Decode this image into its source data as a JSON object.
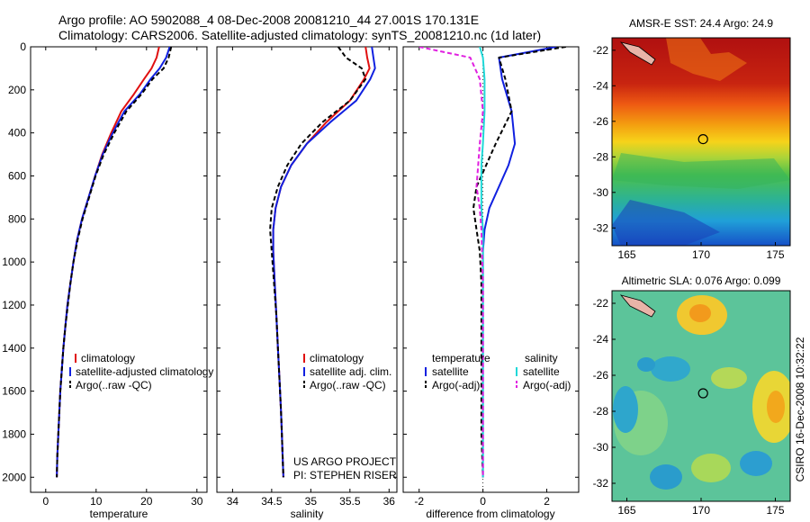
{
  "header": {
    "line1": "Argo profile: AO 5902088_4 08-Dec-2008 20081210_44 27.001S 170.131E",
    "line2": "Climatology: CARS2006. Satellite-adjusted climatology: synTS_20081210.nc (1d later)"
  },
  "side_stamp": "CSIRO 16-Dec-2008 10:32:22",
  "colors": {
    "climatology": "#e01010",
    "satellite": "#1020e0",
    "argo": "#000000",
    "salinity_sat": "#20d8d8",
    "salinity_argo": "#e020e0"
  },
  "chart_data": [
    {
      "id": "temperature",
      "type": "line",
      "xlabel": "temperature",
      "xlim": [
        -3,
        32
      ],
      "ylim": [
        0,
        2070
      ],
      "xticks": [
        "0",
        "10",
        "20",
        "30"
      ],
      "xtick_values": [
        0,
        10,
        20,
        30
      ],
      "yticks": [
        "0",
        "200",
        "400",
        "600",
        "800",
        "1000",
        "1200",
        "1400",
        "1600",
        "1800",
        "2000"
      ],
      "ytick_values": [
        0,
        200,
        400,
        600,
        800,
        1000,
        1200,
        1400,
        1600,
        1800,
        2000
      ],
      "legend": [
        "climatology",
        "satellite-adjusted climatology",
        "Argo(..raw -QC)"
      ],
      "series": [
        {
          "name": "climatology",
          "color_key": "climatology",
          "dash": "",
          "x": [
            22.5,
            22.0,
            21.0,
            19.5,
            17.5,
            15.0,
            13.0,
            11.2,
            9.8,
            8.5,
            7.2,
            6.2,
            5.5,
            4.9,
            4.3,
            3.9,
            3.5,
            3.2,
            2.9,
            2.7,
            2.5,
            2.3,
            2.2
          ],
          "y": [
            0,
            50,
            100,
            150,
            220,
            300,
            400,
            500,
            600,
            700,
            800,
            900,
            1000,
            1100,
            1200,
            1300,
            1400,
            1500,
            1600,
            1700,
            1800,
            1900,
            2000
          ]
        },
        {
          "name": "satellite",
          "color_key": "satellite",
          "dash": "",
          "x": [
            24.6,
            23.9,
            22.6,
            20.8,
            18.7,
            15.6,
            13.3,
            11.3,
            9.8,
            8.5,
            7.2,
            6.2,
            5.5,
            4.9,
            4.3,
            3.9,
            3.5,
            3.2,
            2.9,
            2.7,
            2.5,
            2.3,
            2.2
          ],
          "y": [
            0,
            50,
            100,
            150,
            220,
            300,
            400,
            500,
            600,
            700,
            800,
            900,
            1000,
            1100,
            1200,
            1300,
            1400,
            1500,
            1600,
            1700,
            1800,
            1900,
            2000
          ]
        },
        {
          "name": "argo",
          "color_key": "argo",
          "dash": "5,3",
          "x": [
            24.9,
            24.4,
            23.4,
            21.2,
            19.0,
            16.0,
            13.6,
            11.5,
            9.9,
            8.6,
            7.3,
            6.3,
            5.5,
            4.9,
            4.4,
            3.9,
            3.5,
            3.2,
            2.9,
            2.7,
            2.5,
            2.3,
            2.2
          ],
          "y": [
            0,
            50,
            100,
            150,
            220,
            300,
            400,
            500,
            600,
            700,
            800,
            900,
            1000,
            1100,
            1200,
            1300,
            1400,
            1500,
            1600,
            1700,
            1800,
            1900,
            2000
          ]
        }
      ]
    },
    {
      "id": "salinity",
      "type": "line",
      "xlabel": "salinity",
      "xlim": [
        33.8,
        36.1
      ],
      "ylim": [
        0,
        2070
      ],
      "xticks": [
        "34",
        "34.5",
        "35",
        "35.5",
        "36"
      ],
      "xtick_values": [
        34,
        34.5,
        35,
        35.5,
        36
      ],
      "legend": [
        "climatology",
        "satellite adj. clim.",
        "Argo(..raw -QC)"
      ],
      "credits": [
        "US ARGO PROJECT",
        "PI: STEPHEN RISER"
      ],
      "series": [
        {
          "name": "climatology",
          "color_key": "climatology",
          "dash": "",
          "x": [
            35.7,
            35.72,
            35.75,
            35.68,
            35.5,
            35.2,
            34.95,
            34.75,
            34.62,
            34.55,
            34.52,
            34.52,
            34.54,
            34.56,
            34.58,
            34.6,
            34.62,
            34.63,
            34.64,
            34.65
          ],
          "y": [
            0,
            50,
            100,
            150,
            250,
            350,
            450,
            550,
            650,
            750,
            850,
            950,
            1100,
            1250,
            1400,
            1550,
            1700,
            1800,
            1900,
            2000
          ]
        },
        {
          "name": "satellite",
          "color_key": "satellite",
          "dash": "",
          "x": [
            35.78,
            35.8,
            35.82,
            35.76,
            35.58,
            35.25,
            34.95,
            34.75,
            34.62,
            34.55,
            34.52,
            34.52,
            34.54,
            34.56,
            34.58,
            34.6,
            34.62,
            34.63,
            34.64,
            34.65
          ],
          "y": [
            0,
            50,
            100,
            150,
            250,
            350,
            450,
            550,
            650,
            750,
            850,
            950,
            1100,
            1250,
            1400,
            1550,
            1700,
            1800,
            1900,
            2000
          ]
        },
        {
          "name": "argo",
          "color_key": "argo",
          "dash": "5,3",
          "x": [
            35.35,
            35.45,
            35.65,
            35.7,
            35.5,
            35.15,
            34.88,
            34.7,
            34.58,
            34.5,
            34.48,
            34.5,
            34.53,
            34.56,
            34.58,
            34.6,
            34.62,
            34.63,
            34.64,
            34.65
          ],
          "y": [
            0,
            50,
            100,
            150,
            250,
            350,
            450,
            550,
            650,
            750,
            850,
            950,
            1100,
            1250,
            1400,
            1550,
            1700,
            1800,
            1900,
            2000
          ]
        }
      ]
    },
    {
      "id": "difference",
      "type": "line",
      "xlabel": "difference from climatology",
      "xlim": [
        -2.5,
        3.0
      ],
      "ylim": [
        0,
        2070
      ],
      "xticks": [
        "-2",
        "0",
        "2"
      ],
      "xtick_values": [
        -2,
        0,
        2
      ],
      "legend_headers": [
        "temperature",
        "salinity"
      ],
      "legend": [
        "satellite",
        "Argo(-adj)",
        "satellite",
        "Argo(-adj)"
      ],
      "series": [
        {
          "name": "temperature satellite",
          "color_key": "satellite",
          "dash": "",
          "x": [
            2.3,
            0.5,
            0.6,
            0.9,
            1.0,
            0.8,
            0.5,
            0.2,
            0.05,
            0.0,
            0.0,
            0.0,
            0.0,
            0.0,
            0.0
          ],
          "y": [
            0,
            50,
            150,
            300,
            450,
            550,
            650,
            750,
            850,
            950,
            1100,
            1300,
            1500,
            1800,
            2000
          ]
        },
        {
          "name": "temperature argo",
          "color_key": "argo",
          "dash": "5,3",
          "x": [
            2.6,
            0.5,
            0.7,
            0.9,
            0.4,
            0.1,
            -0.2,
            -0.3,
            -0.2,
            -0.1,
            -0.05,
            -0.05,
            -0.05,
            -0.05,
            0.0
          ],
          "y": [
            0,
            50,
            150,
            300,
            450,
            550,
            650,
            750,
            850,
            950,
            1100,
            1300,
            1500,
            1800,
            2000
          ]
        },
        {
          "name": "salinity satellite",
          "color_key": "salinity_sat",
          "dash": "",
          "x": [
            -0.1,
            0.0,
            0.05,
            0.05,
            0.0,
            -0.05,
            -0.05,
            -0.05,
            0.0,
            0.0,
            0.0,
            0.0,
            0.0,
            0.0,
            0.0
          ],
          "y": [
            0,
            50,
            150,
            300,
            450,
            550,
            650,
            750,
            850,
            950,
            1100,
            1300,
            1500,
            1800,
            2000
          ]
        },
        {
          "name": "salinity argo",
          "color_key": "salinity_argo",
          "dash": "5,3",
          "x": [
            -2.0,
            -0.4,
            -0.1,
            0.0,
            -0.1,
            -0.15,
            -0.2,
            -0.1,
            -0.05,
            -0.03,
            0.0,
            0.0,
            0.0,
            0.0,
            0.0
          ],
          "y": [
            0,
            50,
            150,
            300,
            450,
            550,
            650,
            750,
            850,
            950,
            1100,
            1300,
            1500,
            1800,
            2000
          ]
        }
      ]
    },
    {
      "id": "sst_map",
      "type": "heatmap",
      "title": "AMSR-E SST: 24.4 Argo: 24.9",
      "xticks": [
        "165",
        "170",
        "175"
      ],
      "xtick_values": [
        165,
        170,
        175
      ],
      "yticks": [
        "-22",
        "-24",
        "-26",
        "-28",
        "-30",
        "-32"
      ],
      "ytick_values": [
        -22,
        -24,
        -26,
        -28,
        -30,
        -32
      ],
      "xlim": [
        164,
        176
      ],
      "ylim": [
        -33,
        -21.3
      ],
      "argo_position": {
        "lon": 170.131,
        "lat": -27.001
      }
    },
    {
      "id": "sla_map",
      "type": "heatmap",
      "title": "Altimetric SLA: 0.076 Argo: 0.099",
      "xticks": [
        "165",
        "170",
        "175"
      ],
      "xtick_values": [
        165,
        170,
        175
      ],
      "yticks": [
        "-22",
        "-24",
        "-26",
        "-28",
        "-30",
        "-32"
      ],
      "ytick_values": [
        -22,
        -24,
        -26,
        -28,
        -30,
        -32
      ],
      "xlim": [
        164,
        176
      ],
      "ylim": [
        -33,
        -21.3
      ],
      "argo_position": {
        "lon": 170.131,
        "lat": -27.001
      }
    }
  ]
}
